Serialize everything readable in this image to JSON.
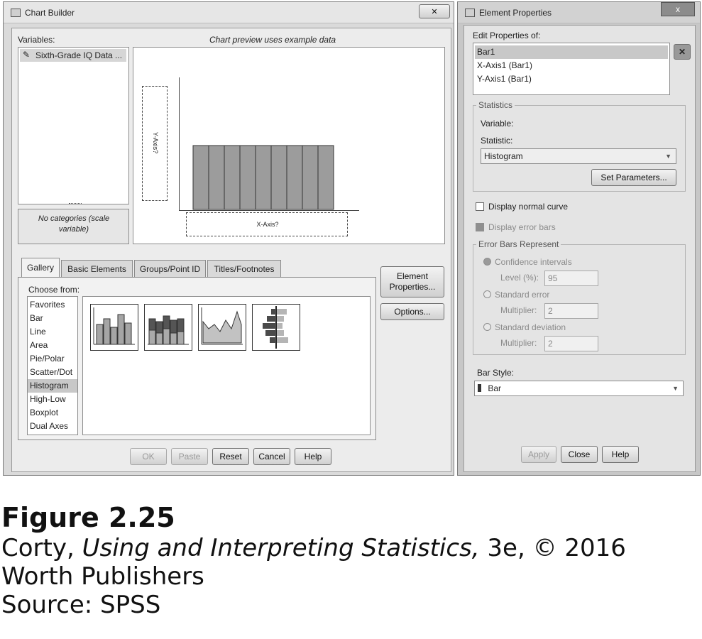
{
  "chart_builder": {
    "title": "Chart Builder",
    "variables_label": "Variables:",
    "variable_item": "Sixth-Grade IQ Data ...",
    "preview_note": "Chart preview uses example data",
    "no_categories": "No categories (scale variable)",
    "y_axis_label": "Y-Axis?",
    "x_axis_label": "X-Axis?",
    "tabs": [
      "Gallery",
      "Basic Elements",
      "Groups/Point ID",
      "Titles/Footnotes"
    ],
    "choose_from_label": "Choose from:",
    "chart_types": [
      "Favorites",
      "Bar",
      "Line",
      "Area",
      "Pie/Polar",
      "Scatter/Dot",
      "Histogram",
      "High-Low",
      "Boxplot",
      "Dual Axes"
    ],
    "selected_type": "Histogram",
    "element_properties_button": "Element Properties...",
    "options_button": "Options...",
    "buttons": {
      "ok": "OK",
      "paste": "Paste",
      "reset": "Reset",
      "cancel": "Cancel",
      "help": "Help"
    },
    "close_glyph": "✕"
  },
  "element_properties": {
    "title": "Element Properties",
    "edit_properties_label": "Edit Properties of:",
    "elements": [
      "Bar1",
      "X-Axis1 (Bar1)",
      "Y-Axis1 (Bar1)"
    ],
    "statistics_legend": "Statistics",
    "variable_label": "Variable:",
    "statistic_label": "Statistic:",
    "statistic_value": "Histogram",
    "set_parameters_button": "Set Parameters...",
    "display_normal_curve": "Display normal curve",
    "display_error_bars": "Display error bars",
    "error_bars_legend": "Error Bars Represent",
    "confidence_intervals": "Confidence intervals",
    "level_label": "Level (%):",
    "level_value": "95",
    "standard_error": "Standard error",
    "multiplier_label": "Multiplier:",
    "se_multiplier": "2",
    "standard_deviation": "Standard deviation",
    "sd_multiplier": "2",
    "bar_style_label": "Bar Style:",
    "bar_style_value": "Bar",
    "buttons": {
      "apply": "Apply",
      "close": "Close",
      "help": "Help"
    },
    "close_glyph": "x",
    "delete_glyph": "✕"
  },
  "caption": {
    "figure": "Figure 2.25",
    "author": "Corty, ",
    "book_title": "Using and Interpreting Statistics,",
    "edition": " 3e, © 2016",
    "publisher": "Worth Publishers",
    "source": "Source: SPSS"
  }
}
